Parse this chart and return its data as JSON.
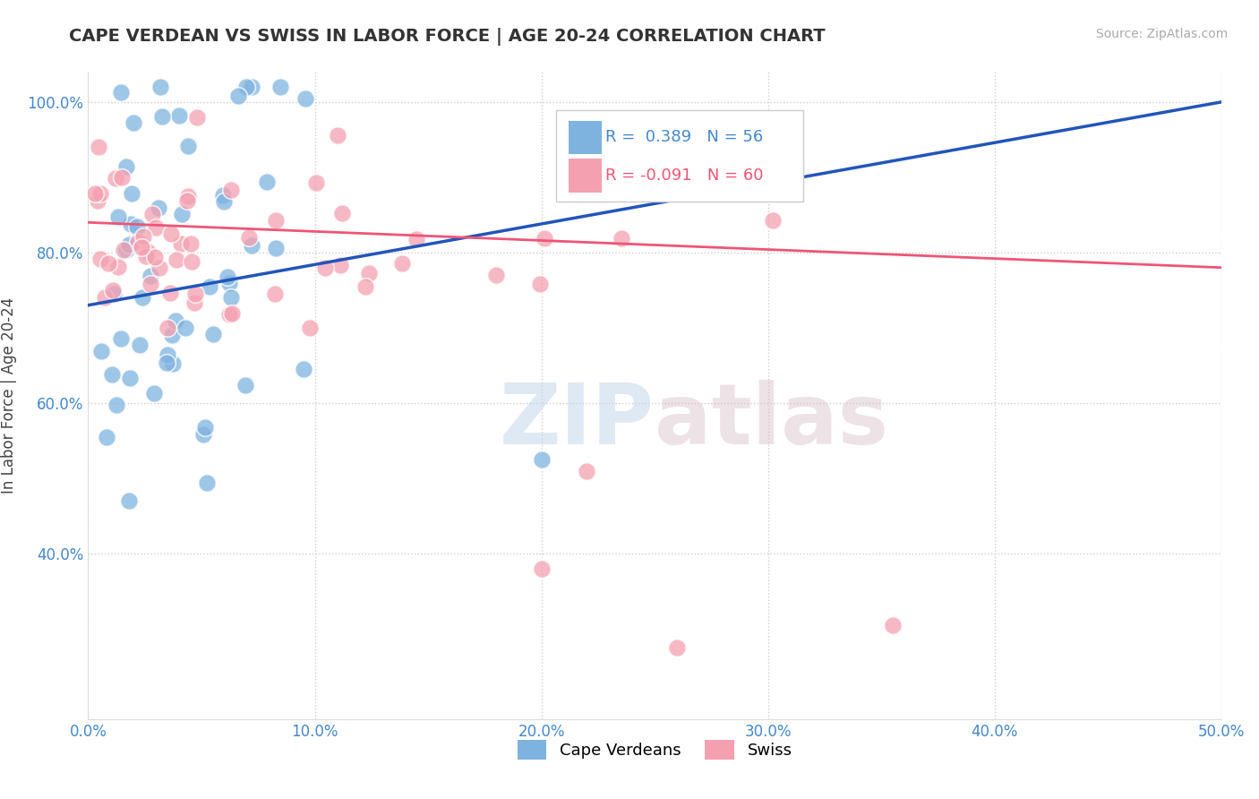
{
  "title": "CAPE VERDEAN VS SWISS IN LABOR FORCE | AGE 20-24 CORRELATION CHART",
  "source": "Source: ZipAtlas.com",
  "ylabel": "In Labor Force | Age 20-24",
  "xmin": 0.0,
  "xmax": 0.5,
  "ymin": 0.18,
  "ymax": 1.04,
  "xtick_vals": [
    0.0,
    0.1,
    0.2,
    0.3,
    0.4,
    0.5
  ],
  "xticklabels": [
    "0.0%",
    "10.0%",
    "20.0%",
    "30.0%",
    "40.0%",
    "50.0%"
  ],
  "ytick_vals": [
    0.4,
    0.6,
    0.8,
    1.0
  ],
  "yticklabels": [
    "40.0%",
    "60.0%",
    "80.0%",
    "100.0%"
  ],
  "blue_color": "#7eb3e0",
  "pink_color": "#f4a0b0",
  "blue_line_color": "#2255bb",
  "pink_line_color": "#ee5577",
  "legend_r_blue": "0.389",
  "legend_n_blue": "56",
  "legend_r_pink": "-0.091",
  "legend_n_pink": "60",
  "blue_label": "Cape Verdeans",
  "pink_label": "Swiss",
  "tick_color": "#4488cc",
  "grid_color": "#cccccc",
  "watermark_color": "#d8e8f0"
}
